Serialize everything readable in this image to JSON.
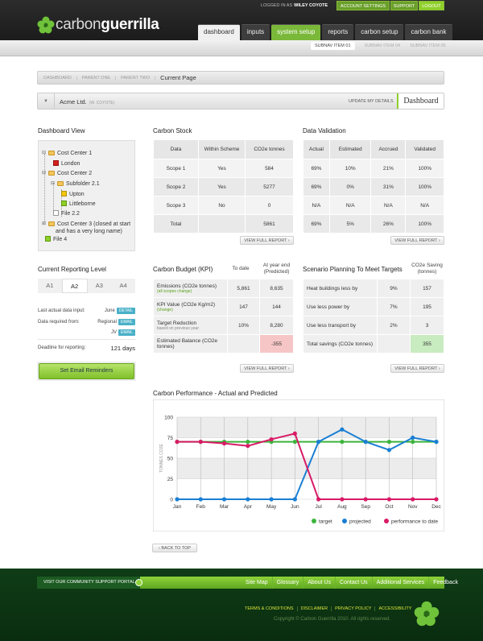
{
  "header": {
    "logo_light": "carbon",
    "logo_bold": "guerrilla",
    "logged_prefix": "LOGGED IN AS",
    "user": "WILEY COYOTE",
    "account_settings": "ACCOUNT SETTINGS",
    "support": "SUPPORT",
    "logout": "LOGOUT",
    "tabs": [
      "dashboard",
      "inputs",
      "system setup",
      "reports",
      "carbon setup",
      "carbon bank"
    ],
    "subnav": [
      "SUBNAV ITEM 01",
      "SUBNAV ITEM 04",
      "SUBNAV ITEM 05"
    ]
  },
  "breadcrumb": [
    "DASHBOARD",
    "PARENT ONE",
    "PARENT TWO",
    "Current Page"
  ],
  "company": {
    "name": "Acme Ltd.",
    "user": "(W. COYOTE)",
    "update": "UPDATE MY DETAILS",
    "page": "Dashboard"
  },
  "dashboard_view": {
    "title": "Dashboard View",
    "tree": [
      "Cost Center 1",
      "London",
      "Cost Center 2",
      "Subfolder 2.1",
      "Upton",
      "Littleborne",
      "File 2.2",
      "Cost Center 3 (closed at start",
      "and has a very long name)",
      "File 4"
    ]
  },
  "reporting": {
    "title": "Current Reporting Level",
    "levels": [
      "A1",
      "A2",
      "A3",
      "A4"
    ],
    "rows": [
      {
        "label": "Last actual data input:",
        "value": "June",
        "badge": "DETAIL"
      },
      {
        "label": "Data required from:",
        "value": "Regional",
        "badge": "EMAIL"
      },
      {
        "label": "",
        "value": "JV",
        "badge": "EMAIL"
      },
      {
        "label": "Deadline for reporting:",
        "value": "121 days",
        "badge": ""
      }
    ],
    "button": "Set Email Reminders"
  },
  "carbon_stock": {
    "title": "Carbon Stock",
    "headers": [
      "Data",
      "Within Scheme",
      "CO2e tonnes"
    ],
    "rows": [
      [
        "Scope 1",
        "Yes",
        "584"
      ],
      [
        "Scope 2",
        "Yes",
        "5277"
      ],
      [
        "Scope 3",
        "No",
        "0"
      ],
      [
        "Total",
        "",
        "5861"
      ]
    ]
  },
  "validation": {
    "title": "Data Validation",
    "headers": [
      "Actual",
      "Estimated",
      "Accrued",
      "Validated"
    ],
    "rows": [
      [
        "69%",
        "10%",
        "21%",
        "100%"
      ],
      [
        "69%",
        "0%",
        "31%",
        "100%"
      ],
      [
        "N/A",
        "N/A",
        "N/A",
        "N/A"
      ],
      [
        "69%",
        "5%",
        "26%",
        "100%"
      ]
    ]
  },
  "view_report": "VIEW FULL REPORT",
  "budget": {
    "title": "Carbon Budget (KPI)",
    "h_todate": "To date",
    "h_yearend": "At year end",
    "h_predicted": "(Predicted)",
    "rows": [
      {
        "label": "Emissions (CO2e tonnes)",
        "sub": "(all scopes change)",
        "a": "5,861",
        "b": "8,635"
      },
      {
        "label": "KPI Value (CO2e Kg/m2)",
        "sub": "(change)",
        "a": "147",
        "b": "144"
      },
      {
        "label": "Target Reduction",
        "sub": "based on previous year",
        "a": "10%",
        "b": "8,280"
      },
      {
        "label": "Estimated Balance (CO2e tonnes)",
        "sub": "",
        "a": "",
        "b": "-355"
      }
    ]
  },
  "scenario": {
    "title": "Scenario Planning To Meet Targets",
    "h1": "CO2e Saving",
    "h2": "(tonnes)",
    "rows": [
      {
        "label": "Heat buildings less by",
        "a": "9%",
        "b": "157"
      },
      {
        "label": "Use less power by",
        "a": "7%",
        "b": "195"
      },
      {
        "label": "Use less transport by",
        "a": "2%",
        "b": "3"
      },
      {
        "label": "Total savings (CO2e tonnes)",
        "a": "",
        "b": "355"
      }
    ]
  },
  "chart_data": {
    "type": "line",
    "title": "Carbon Performance - Actual and Predicted",
    "ylabel": "TONNES CO2E",
    "categories": [
      "Jan",
      "Feb",
      "Mar",
      "Apr",
      "May",
      "Jun",
      "Jul",
      "Aug",
      "Sep",
      "Oct",
      "Nov",
      "Dec"
    ],
    "ylim": [
      0,
      100
    ],
    "yticks": [
      0,
      25,
      50,
      75,
      100
    ],
    "series": [
      {
        "name": "target",
        "color": "#3cb43c",
        "values": [
          70,
          70,
          70,
          70,
          70,
          70,
          70,
          70,
          70,
          70,
          70,
          70
        ]
      },
      {
        "name": "projected",
        "color": "#1a7fd4",
        "values": [
          0,
          0,
          0,
          0,
          0,
          0,
          70,
          85,
          70,
          60,
          75,
          70
        ]
      },
      {
        "name": "performance to date",
        "color": "#d81b66",
        "values": [
          70,
          70,
          68,
          65,
          73,
          80,
          0,
          0,
          0,
          0,
          0,
          0
        ]
      }
    ],
    "grid": true,
    "legend": "bottom-right"
  },
  "back_to_top": "BACK TO TOP",
  "footer": {
    "portal": "VISIT OUR COMMUNITY SUPPORT PORTAL",
    "nav": [
      "Site Map",
      "Glossary",
      "About Us",
      "Contact Us",
      "Additional Services",
      "Feedback"
    ],
    "legal": [
      "TERMS & CONDITIONS",
      "DISCLAIMER",
      "PRIVACY POLICY",
      "ACCESSIBILITY"
    ],
    "copyright": "Copyright © Carbon Guerrilla 2010. All rights reserved."
  }
}
